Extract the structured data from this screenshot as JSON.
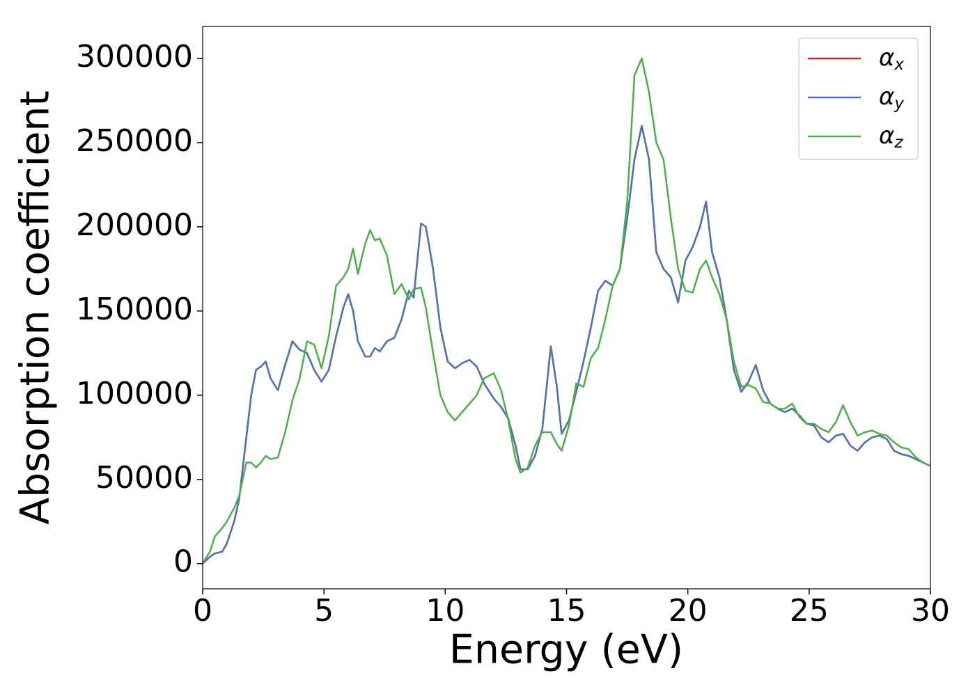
{
  "chart_data": {
    "type": "line",
    "xlabel": "Energy (eV)",
    "ylabel": "Absorption coefficient",
    "x": [
      0,
      0.3,
      0.5,
      0.8,
      1.0,
      1.3,
      1.5,
      1.8,
      2.0,
      2.2,
      2.4,
      2.6,
      2.8,
      3.1,
      3.4,
      3.7,
      4.0,
      4.3,
      4.6,
      4.9,
      5.2,
      5.5,
      5.8,
      6.0,
      6.2,
      6.4,
      6.7,
      6.9,
      7.1,
      7.3,
      7.6,
      7.9,
      8.2,
      8.5,
      8.7,
      9.0,
      9.2,
      9.5,
      9.8,
      10.1,
      10.4,
      10.7,
      11.0,
      11.3,
      11.6,
      12.0,
      12.3,
      12.6,
      12.9,
      13.1,
      13.4,
      13.7,
      14.0,
      14.35,
      14.6,
      14.8,
      15.1,
      15.4,
      15.7,
      16.0,
      16.3,
      16.6,
      16.9,
      17.2,
      17.5,
      17.8,
      18.1,
      18.4,
      18.7,
      19.0,
      19.3,
      19.6,
      19.9,
      20.2,
      20.5,
      20.75,
      21.0,
      21.3,
      21.6,
      21.9,
      22.2,
      22.5,
      22.8,
      23.1,
      23.4,
      23.7,
      24.0,
      24.3,
      24.6,
      24.9,
      25.2,
      25.5,
      25.8,
      26.1,
      26.4,
      26.7,
      27.0,
      27.3,
      27.6,
      27.9,
      28.2,
      28.5,
      28.8,
      29.1,
      29.4,
      29.7,
      30.0
    ],
    "series": [
      {
        "name": "αx",
        "color": "#e41a1c",
        "values": [
          0,
          4000,
          6000,
          7000,
          12000,
          25000,
          38000,
          75000,
          100000,
          115000,
          117000,
          120000,
          110000,
          103000,
          118000,
          132000,
          127000,
          125000,
          115000,
          108000,
          115000,
          135000,
          152000,
          160000,
          150000,
          132000,
          123000,
          123000,
          128000,
          126000,
          132000,
          134000,
          145000,
          162000,
          158000,
          202000,
          200000,
          175000,
          140000,
          120000,
          116000,
          119000,
          121000,
          117000,
          107000,
          98000,
          93000,
          86000,
          70000,
          56000,
          56000,
          64000,
          80000,
          129000,
          105000,
          77000,
          85000,
          102000,
          120000,
          140000,
          162000,
          168000,
          165000,
          175000,
          205000,
          240000,
          260000,
          240000,
          185000,
          175000,
          170000,
          155000,
          180000,
          188000,
          200000,
          215000,
          185000,
          170000,
          145000,
          115000,
          102000,
          108000,
          118000,
          103000,
          95000,
          92000,
          90000,
          92000,
          88000,
          83000,
          82000,
          75000,
          72000,
          76000,
          77000,
          70000,
          67000,
          72000,
          75000,
          76000,
          74000,
          67000,
          65000,
          64000,
          62000,
          60000,
          58000
        ]
      },
      {
        "name": "αy",
        "color": "#4a77b4",
        "values": [
          0,
          4000,
          6000,
          7000,
          12000,
          25000,
          38000,
          75000,
          100000,
          115000,
          117000,
          120000,
          110000,
          103000,
          118000,
          132000,
          127000,
          125000,
          115000,
          108000,
          115000,
          135000,
          152000,
          160000,
          150000,
          132000,
          123000,
          123000,
          128000,
          126000,
          132000,
          134000,
          145000,
          162000,
          158000,
          202000,
          200000,
          175000,
          140000,
          120000,
          116000,
          119000,
          121000,
          117000,
          107000,
          98000,
          93000,
          86000,
          70000,
          56000,
          56000,
          64000,
          80000,
          129000,
          105000,
          77000,
          85000,
          102000,
          120000,
          140000,
          162000,
          168000,
          165000,
          175000,
          205000,
          240000,
          260000,
          240000,
          185000,
          175000,
          170000,
          155000,
          180000,
          188000,
          200000,
          215000,
          185000,
          170000,
          145000,
          115000,
          102000,
          108000,
          118000,
          103000,
          95000,
          92000,
          90000,
          92000,
          88000,
          83000,
          82000,
          75000,
          72000,
          76000,
          77000,
          70000,
          67000,
          72000,
          75000,
          76000,
          74000,
          67000,
          65000,
          64000,
          62000,
          60000,
          58000
        ]
      },
      {
        "name": "αz",
        "color": "#4daf4a",
        "values": [
          0,
          7000,
          16000,
          21000,
          25000,
          33000,
          40000,
          60000,
          60000,
          57000,
          60000,
          64000,
          62000,
          63000,
          78000,
          97000,
          110000,
          132000,
          130000,
          116000,
          135000,
          165000,
          170000,
          175000,
          187000,
          172000,
          190000,
          198000,
          192000,
          193000,
          183000,
          160000,
          166000,
          157000,
          163000,
          164000,
          152000,
          125000,
          100000,
          90000,
          85000,
          90000,
          95000,
          100000,
          110000,
          113000,
          103000,
          85000,
          62000,
          54000,
          57000,
          70000,
          78000,
          78000,
          71000,
          67000,
          82000,
          107000,
          105000,
          122000,
          128000,
          145000,
          165000,
          175000,
          215000,
          290000,
          300000,
          280000,
          250000,
          240000,
          205000,
          175000,
          162000,
          161000,
          175000,
          180000,
          170000,
          160000,
          145000,
          120000,
          105000,
          106000,
          104000,
          96000,
          95000,
          92000,
          92000,
          95000,
          87000,
          83000,
          83000,
          80000,
          78000,
          84000,
          94000,
          84000,
          76000,
          78000,
          79000,
          77000,
          76000,
          72000,
          69000,
          68000,
          63000,
          60000,
          58000
        ]
      }
    ],
    "xlim": [
      0,
      30
    ],
    "xticks": [
      0,
      5,
      10,
      15,
      20,
      25,
      30
    ],
    "ylim": [
      -15000,
      319000
    ],
    "yticks": [
      0,
      50000,
      100000,
      150000,
      200000,
      250000,
      300000
    ],
    "legend": "upper right"
  }
}
